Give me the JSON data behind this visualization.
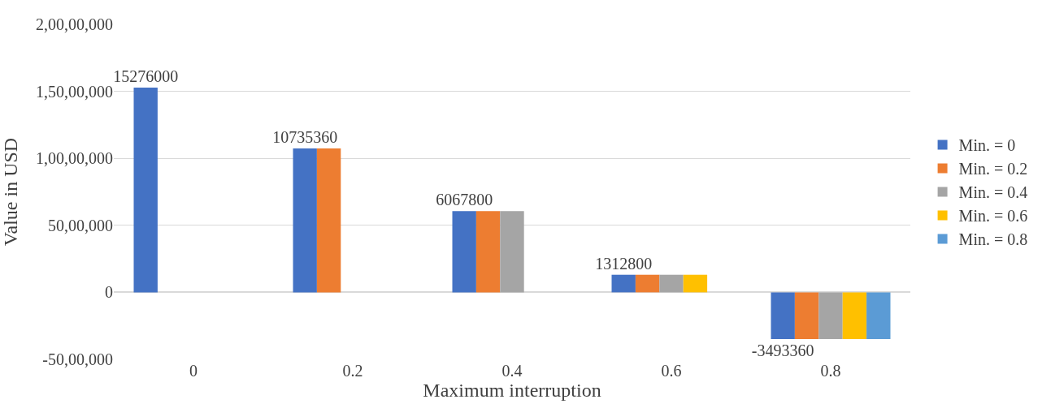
{
  "chart_data": {
    "type": "bar",
    "xlabel": "Maximum interruption",
    "ylabel": "Value in USD",
    "categories": [
      "0",
      "0.2",
      "0.4",
      "0.6",
      "0.8"
    ],
    "series": [
      {
        "name": "Min. = 0",
        "color": "#4472c4",
        "values": [
          15276000,
          10735360,
          6067800,
          1312800,
          -3493360
        ],
        "value_labels": [
          "15276000",
          "10735360",
          "6067800",
          "1312800",
          "-3493360"
        ]
      },
      {
        "name": "Min. = 0.2",
        "color": "#ed7d31",
        "values": [
          null,
          10735360,
          6067800,
          1312800,
          -3493360
        ]
      },
      {
        "name": "Min. = 0.4",
        "color": "#a5a5a5",
        "values": [
          null,
          null,
          6067800,
          1312800,
          -3493360
        ]
      },
      {
        "name": "Min. = 0.6",
        "color": "#ffc000",
        "values": [
          null,
          null,
          null,
          1312800,
          -3493360
        ]
      },
      {
        "name": "Min. = 0.8",
        "color": "#5b9bd5",
        "values": [
          null,
          null,
          null,
          null,
          -3493360
        ]
      }
    ],
    "ylim": [
      -5000000,
      20000000
    ],
    "yticks": [
      {
        "value": -5000000,
        "label": "-50,00,000"
      },
      0,
      {
        "value": 5000000,
        "label": "50,00,000"
      },
      {
        "value": 10000000,
        "label": "1,00,00,000"
      },
      {
        "value": 15000000,
        "label": "1,50,00,000"
      },
      {
        "value": 20000000,
        "label": "2,00,00,000"
      }
    ],
    "grid": "y",
    "legend": "right"
  }
}
